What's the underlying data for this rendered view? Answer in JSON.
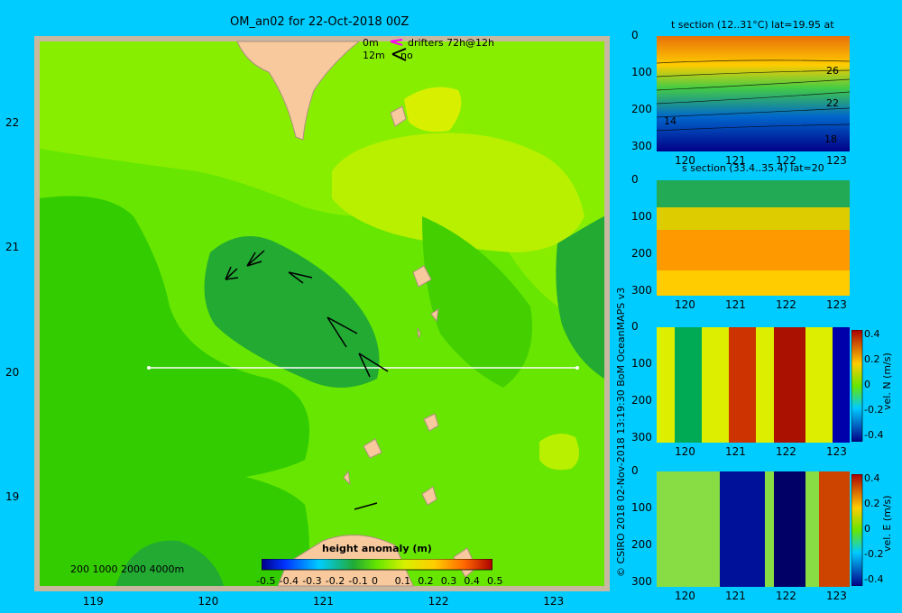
{
  "main_title": "OM_an02 for 22-Oct-2018 00Z",
  "legend_drift": {
    "line1_label": "0m",
    "line1_text": "drifters 72h@12h",
    "line2_label": "12m",
    "line2_text": "no"
  },
  "depth_legend": "200  1000  2000  4000m",
  "map_section_lat": 20,
  "colorbar": {
    "title": "height anomaly  (m)",
    "ticks": [
      "-0.5",
      "-0.4",
      "-0.3",
      "-0.2",
      "-0.1",
      "0",
      "0.1",
      "0.2",
      "0.3",
      "0.4",
      "0.5"
    ]
  },
  "map_x_ticks": [
    "119",
    "120",
    "121",
    "122",
    "123"
  ],
  "map_y_ticks": [
    "22",
    "21",
    "20",
    "19"
  ],
  "credit": "© CSIRO 2018   02-Nov-2018 13:19:30 BoM OceanMAPS v3",
  "panels": [
    {
      "title": "t section (12..31°C) lat=19.95 at",
      "unit": "",
      "ticks": []
    },
    {
      "title": "s section (33.4..35.4) lat=20",
      "unit": "",
      "ticks": []
    },
    {
      "title": "",
      "unit": "vel. N (m/s)",
      "ticks": [
        "0.4",
        "0.2",
        "0",
        "-0.2",
        "-0.4"
      ]
    },
    {
      "title": "",
      "unit": "vel. E (m/s)",
      "ticks": [
        "0.4",
        "0.2",
        "0",
        "-0.2",
        "-0.4"
      ]
    }
  ],
  "section_y_ticks": [
    "0",
    "100",
    "200",
    "300"
  ],
  "section_x_ticks": [
    "120",
    "121",
    "122",
    "123"
  ],
  "t_contour_labels": [
    "26",
    "22",
    "14",
    "18"
  ],
  "colors": {
    "background": "#00ccff",
    "land": "#f7c99d"
  },
  "chart_data": [
    {
      "type": "heatmap",
      "title": "OM_an02 for 22-Oct-2018 00Z",
      "xlabel": "",
      "ylabel": "",
      "xlim": [
        118.5,
        123.5
      ],
      "ylim": [
        18.25,
        22.7
      ],
      "xticks": [
        119,
        120,
        121,
        122,
        123
      ],
      "yticks": [
        19,
        20,
        21,
        22
      ],
      "colorbar": {
        "label": "height anomaly  (m)",
        "range": [
          -0.5,
          0.5
        ]
      },
      "section_line": {
        "lat": 20.0,
        "lon_range": [
          119.5,
          123.2
        ]
      },
      "vectors_lonlat": [
        [
          120.25,
          20.75
        ],
        [
          120.5,
          20.9
        ],
        [
          120.8,
          20.8
        ],
        [
          121.0,
          20.4
        ],
        [
          121.4,
          20.1
        ]
      ]
    },
    {
      "type": "heatmap",
      "title": "t section (12..31°C) lat=19.95 at",
      "xlim": [
        119.6,
        123.2
      ],
      "ylim": [
        300,
        0
      ],
      "contour_labels": [
        26,
        22,
        14,
        18
      ]
    },
    {
      "type": "heatmap",
      "title": "s section (33.4..35.4) lat=20",
      "xlim": [
        119.6,
        123.2
      ],
      "ylim": [
        300,
        0
      ]
    },
    {
      "type": "heatmap",
      "title": "",
      "xlim": [
        119.6,
        123.2
      ],
      "ylim": [
        300,
        0
      ],
      "colorbar": {
        "label": "vel. N (m/s)",
        "range": [
          -0.4,
          0.4
        ]
      }
    },
    {
      "type": "heatmap",
      "title": "",
      "xlim": [
        119.6,
        123.2
      ],
      "ylim": [
        300,
        0
      ],
      "colorbar": {
        "label": "vel. E (m/s)",
        "range": [
          -0.4,
          0.4
        ]
      }
    }
  ]
}
